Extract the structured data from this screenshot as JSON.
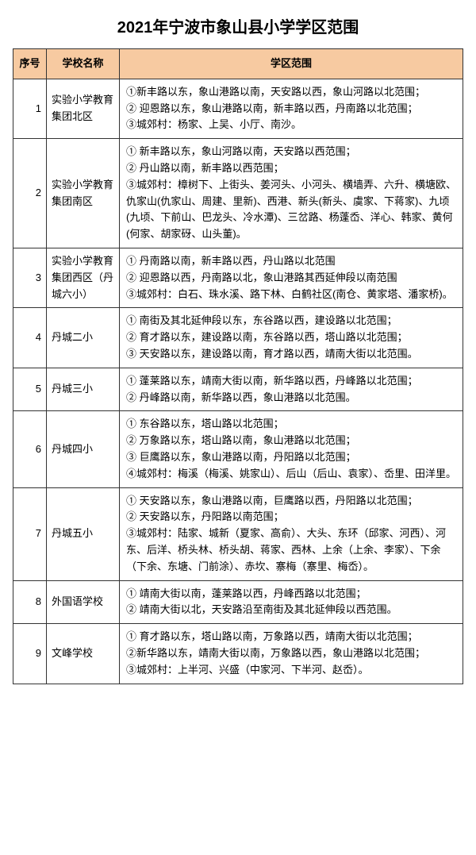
{
  "title": "2021年宁波市象山县小学学区范围",
  "headers": {
    "idx": "序号",
    "name": "学校名称",
    "area": "学区范围"
  },
  "header_bg": "#f7caa1",
  "border_color": "#333333",
  "rows": [
    {
      "idx": "1",
      "name": "实验小学教育集团北区",
      "area": [
        "①新丰路以东，象山港路以南，天安路以西，象山河路以北范围；",
        "② 迎恩路以东，象山港路以南，新丰路以西，丹南路以北范围；",
        "③城郊村：杨家、上吴、小厅、南沙。"
      ]
    },
    {
      "idx": "2",
      "name": "实验小学教育集团南区",
      "area": [
        "① 新丰路以东，象山河路以南，天安路以西范围；",
        "② 丹山路以南，新丰路以西范围；",
        "③城郊村：樟树下、上街头、姜河头、小河头、横墙弄、六升、横塘欧、仇家山(仇家山、周建、里新)、西港、新头(新头、虞家、下蒋家)、九顷(九顷、下前山、巴龙头、冷水潭)、三岔路、杨蓬岙、洋心、韩家、黄何(何家、胡家砑、山头董)。"
      ]
    },
    {
      "idx": "3",
      "name": "实验小学教育集团西区（丹城六小）",
      "area": [
        "① 丹南路以南，新丰路以西，丹山路以北范围",
        "② 迎恩路以西，丹南路以北，象山港路其西延伸段以南范围",
        "③城郊村：白石、珠水溪、路下林、白鹤社区(南仓、黄家塔、潘家桥)。"
      ]
    },
    {
      "idx": "4",
      "name": "丹城二小",
      "area": [
        "① 南街及其北延伸段以东，东谷路以西，建设路以北范围；",
        "② 育才路以东，建设路以南，东谷路以西，塔山路以北范围；",
        "③ 天安路以东，建设路以南，育才路以西，靖南大街以北范围。"
      ]
    },
    {
      "idx": "5",
      "name": "丹城三小",
      "area": [
        "① 蓬莱路以东，靖南大街以南，新华路以西，丹峰路以北范围；",
        "② 丹峰路以南，新华路以西，象山港路以北范围。"
      ]
    },
    {
      "idx": "6",
      "name": "丹城四小",
      "area": [
        "① 东谷路以东，塔山路以北范围；",
        "② 万象路以东，塔山路以南，象山港路以北范围；",
        "③ 巨鹰路以东，象山港路以南，丹阳路以北范围；",
        "④城郊村：梅溪（梅溪、姚家山）、后山（后山、袁家）、岙里、田洋里。"
      ]
    },
    {
      "idx": "7",
      "name": "丹城五小",
      "area": [
        "① 天安路以东，象山港路以南，巨鹰路以西，丹阳路以北范围；",
        "② 天安路以东，丹阳路以南范围；",
        "③城郊村：陆家、城新（夏家、高俞）、大头、东环（邱家、河西）、河东、后洋、桥头林、桥头胡、蒋家、西林、上余（上余、李家）、下余（下余、东塘、门前涂）、赤坎、寨梅（寨里、梅岙）。"
      ]
    },
    {
      "idx": "8",
      "name": "外国语学校",
      "area": [
        "① 靖南大街以南，蓬莱路以西，丹峰西路以北范围；",
        "② 靖南大街以北，天安路沿至南街及其北延伸段以西范围。"
      ]
    },
    {
      "idx": "9",
      "name": "文峰学校",
      "area": [
        "① 育才路以东，塔山路以南，万象路以西，靖南大街以北范围；",
        "②新华路以东，靖南大街以南，万象路以西，象山港路以北范围；",
        "③城郊村：上半河、兴盛（中家河、下半河、赵岙）。"
      ]
    }
  ]
}
